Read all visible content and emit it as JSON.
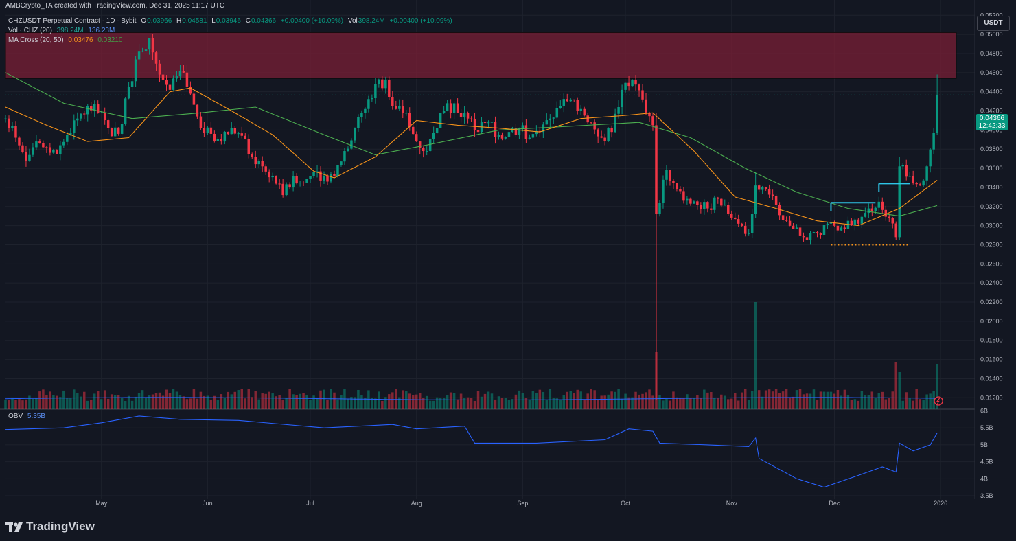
{
  "header": {
    "credit": "AMBCrypto_TA created with TradingView.com, Dec 31, 2025 11:17 UTC"
  },
  "legend": {
    "symbol": "CHZUSDT Perpetual Contract · 1D · Bybit",
    "open_label": "O",
    "open": "0.03966",
    "high_label": "H",
    "high": "0.04581",
    "low_label": "L",
    "low": "0.03946",
    "close_label": "C",
    "close": "0.04366",
    "change": "+0.00400 (+10.09%)",
    "vol_label": "Vol",
    "vol": "398.24M",
    "vol_change": "+0.00400 (+10.09%)",
    "volume_indicator": "Vol · CHZ (20)",
    "volume_value": "398.24M",
    "volume_ma": "136.23M",
    "ma_cross": "MA Cross (20, 50)",
    "ma20": "0.03476",
    "ma50": "0.03210",
    "obv_label": "OBV",
    "obv_value": "5.35B"
  },
  "toolbar": {
    "currency": "USDT",
    "last_price": "0.04366",
    "countdown": "12:42:33",
    "brand": "TradingView"
  },
  "colors": {
    "background": "#131722",
    "up": "#089981",
    "down": "#f23645",
    "ma20": "#f7931a",
    "ma50": "#4caf50",
    "obv": "#2962ff",
    "resistance_zone": "#7a1f35",
    "range_line": "#2ec4e6",
    "support_line": "#f7931a"
  },
  "chart_data": [
    {
      "type": "candlestick",
      "title": "",
      "price_axis_ticks": [
        "0.05200",
        "0.05000",
        "0.04800",
        "0.04600",
        "0.04400",
        "0.04200",
        "0.04000",
        "0.03800",
        "0.03600",
        "0.03400",
        "0.03200",
        "0.03000",
        "0.02800",
        "0.02600",
        "0.02400",
        "0.02200",
        "0.02000",
        "0.01800",
        "0.01600",
        "0.01400",
        "0.01200"
      ],
      "ylim": [
        0.0108,
        0.0536
      ],
      "time_axis_ticks": [
        "May",
        "Jun",
        "Jul",
        "Aug",
        "Sep",
        "Oct",
        "Nov",
        "Dec",
        "2026"
      ],
      "x_range": [
        "2025-04-03",
        "2026-01-11"
      ],
      "grid": true,
      "annotations": {
        "resistance_zone": [
          0.0454,
          0.0502
        ],
        "range_high_1": {
          "from": "2025-11-30",
          "to": "2025-12-13",
          "price": 0.0324
        },
        "range_high_2": {
          "from": "2025-12-14",
          "to": "2025-12-23",
          "price": 0.0344
        },
        "support_dotted": {
          "from": "2025-11-30",
          "to": "2025-12-23",
          "price": 0.028
        }
      },
      "close_series": [
        [
          "2025-04-03",
          0.0412
        ],
        [
          "2025-04-06",
          0.0392
        ],
        [
          "2025-04-09",
          0.0368
        ],
        [
          "2025-04-12",
          0.0388
        ],
        [
          "2025-04-15",
          0.0382
        ],
        [
          "2025-04-18",
          0.0375
        ],
        [
          "2025-04-21",
          0.0395
        ],
        [
          "2025-04-24",
          0.0412
        ],
        [
          "2025-04-27",
          0.0425
        ],
        [
          "2025-04-30",
          0.0418
        ],
        [
          "2025-05-03",
          0.0402
        ],
        [
          "2025-05-06",
          0.0396
        ],
        [
          "2025-05-09",
          0.0445
        ],
        [
          "2025-05-12",
          0.0482
        ],
        [
          "2025-05-15",
          0.0496
        ],
        [
          "2025-05-18",
          0.0458
        ],
        [
          "2025-05-21",
          0.0442
        ],
        [
          "2025-05-24",
          0.0462
        ],
        [
          "2025-05-27",
          0.0438
        ],
        [
          "2025-05-30",
          0.0402
        ],
        [
          "2025-06-02",
          0.0396
        ],
        [
          "2025-06-05",
          0.0388
        ],
        [
          "2025-06-08",
          0.0402
        ],
        [
          "2025-06-11",
          0.0394
        ],
        [
          "2025-06-14",
          0.0372
        ],
        [
          "2025-06-17",
          0.0362
        ],
        [
          "2025-06-20",
          0.0352
        ],
        [
          "2025-06-23",
          0.0332
        ],
        [
          "2025-06-26",
          0.0352
        ],
        [
          "2025-06-29",
          0.0345
        ],
        [
          "2025-07-02",
          0.0356
        ],
        [
          "2025-07-05",
          0.0352
        ],
        [
          "2025-07-08",
          0.0352
        ],
        [
          "2025-07-11",
          0.0378
        ],
        [
          "2025-07-14",
          0.0402
        ],
        [
          "2025-07-17",
          0.0422
        ],
        [
          "2025-07-20",
          0.0448
        ],
        [
          "2025-07-23",
          0.0452
        ],
        [
          "2025-07-26",
          0.0422
        ],
        [
          "2025-07-29",
          0.0418
        ],
        [
          "2025-08-01",
          0.0388
        ],
        [
          "2025-08-04",
          0.0378
        ],
        [
          "2025-08-07",
          0.0402
        ],
        [
          "2025-08-10",
          0.0428
        ],
        [
          "2025-08-13",
          0.0418
        ],
        [
          "2025-08-16",
          0.0412
        ],
        [
          "2025-08-19",
          0.0398
        ],
        [
          "2025-08-22",
          0.0408
        ],
        [
          "2025-08-25",
          0.0395
        ],
        [
          "2025-08-28",
          0.0398
        ],
        [
          "2025-08-31",
          0.0402
        ],
        [
          "2025-09-03",
          0.0392
        ],
        [
          "2025-09-06",
          0.0398
        ],
        [
          "2025-09-09",
          0.0412
        ],
        [
          "2025-09-12",
          0.0425
        ],
        [
          "2025-09-15",
          0.0432
        ],
        [
          "2025-09-18",
          0.0422
        ],
        [
          "2025-09-21",
          0.0408
        ],
        [
          "2025-09-24",
          0.0392
        ],
        [
          "2025-09-27",
          0.0398
        ],
        [
          "2025-09-30",
          0.0442
        ],
        [
          "2025-10-03",
          0.0452
        ],
        [
          "2025-10-06",
          0.0432
        ],
        [
          "2025-10-09",
          0.0405
        ],
        [
          "2025-10-10",
          0.0312
        ],
        [
          "2025-10-13",
          0.0358
        ],
        [
          "2025-10-16",
          0.0338
        ],
        [
          "2025-10-19",
          0.0328
        ],
        [
          "2025-10-22",
          0.0322
        ],
        [
          "2025-10-25",
          0.0318
        ],
        [
          "2025-10-28",
          0.0328
        ],
        [
          "2025-10-31",
          0.0312
        ],
        [
          "2025-11-03",
          0.0302
        ],
        [
          "2025-11-06",
          0.0292
        ],
        [
          "2025-11-08",
          0.0342
        ],
        [
          "2025-11-11",
          0.0338
        ],
        [
          "2025-11-14",
          0.0322
        ],
        [
          "2025-11-17",
          0.0305
        ],
        [
          "2025-11-20",
          0.0298
        ],
        [
          "2025-11-23",
          0.0285
        ],
        [
          "2025-11-26",
          0.0292
        ],
        [
          "2025-11-29",
          0.0302
        ],
        [
          "2025-12-02",
          0.0295
        ],
        [
          "2025-12-05",
          0.0305
        ],
        [
          "2025-12-08",
          0.0302
        ],
        [
          "2025-12-11",
          0.0318
        ],
        [
          "2025-12-14",
          0.0325
        ],
        [
          "2025-12-17",
          0.0308
        ],
        [
          "2025-12-19",
          0.0288
        ],
        [
          "2025-12-20",
          0.0362
        ],
        [
          "2025-12-23",
          0.0352
        ],
        [
          "2025-12-26",
          0.0342
        ],
        [
          "2025-12-28",
          0.0362
        ],
        [
          "2025-12-30",
          0.0397
        ],
        [
          "2025-12-31",
          0.04366
        ]
      ],
      "ma20_series": [
        [
          "2025-04-03",
          0.0424
        ],
        [
          "2025-04-15",
          0.0405
        ],
        [
          "2025-04-27",
          0.0388
        ],
        [
          "2025-05-09",
          0.0392
        ],
        [
          "2025-05-21",
          0.044
        ],
        [
          "2025-05-27",
          0.0444
        ],
        [
          "2025-06-08",
          0.042
        ],
        [
          "2025-06-20",
          0.0395
        ],
        [
          "2025-07-02",
          0.0357
        ],
        [
          "2025-07-08",
          0.035
        ],
        [
          "2025-07-20",
          0.0372
        ],
        [
          "2025-08-01",
          0.041
        ],
        [
          "2025-08-13",
          0.0405
        ],
        [
          "2025-08-25",
          0.0402
        ],
        [
          "2025-09-06",
          0.0398
        ],
        [
          "2025-09-18",
          0.0412
        ],
        [
          "2025-09-30",
          0.0415
        ],
        [
          "2025-10-09",
          0.0418
        ],
        [
          "2025-10-21",
          0.0378
        ],
        [
          "2025-11-02",
          0.033
        ],
        [
          "2025-11-14",
          0.0318
        ],
        [
          "2025-11-26",
          0.0305
        ],
        [
          "2025-12-08",
          0.03
        ],
        [
          "2025-12-20",
          0.0318
        ],
        [
          "2025-12-31",
          0.03476
        ]
      ],
      "ma50_series": [
        [
          "2025-04-03",
          0.046
        ],
        [
          "2025-04-20",
          0.0428
        ],
        [
          "2025-05-10",
          0.0412
        ],
        [
          "2025-05-30",
          0.0418
        ],
        [
          "2025-06-15",
          0.0424
        ],
        [
          "2025-07-05",
          0.0395
        ],
        [
          "2025-07-20",
          0.0374
        ],
        [
          "2025-08-05",
          0.0385
        ],
        [
          "2025-08-25",
          0.04
        ],
        [
          "2025-09-15",
          0.0404
        ],
        [
          "2025-10-05",
          0.0408
        ],
        [
          "2025-10-20",
          0.0392
        ],
        [
          "2025-11-05",
          0.036
        ],
        [
          "2025-11-20",
          0.0335
        ],
        [
          "2025-12-05",
          0.0318
        ],
        [
          "2025-12-20",
          0.031
        ],
        [
          "2025-12-31",
          0.0321
        ]
      ],
      "volume_spikes": [
        [
          "2025-10-10",
          0.28
        ],
        [
          "2025-11-08",
          0.52
        ],
        [
          "2025-12-19",
          0.23
        ],
        [
          "2025-12-20",
          0.18
        ],
        [
          "2025-12-31",
          0.22
        ]
      ]
    },
    {
      "type": "line",
      "title": "OBV",
      "axis_ticks": [
        "6B",
        "5.5B",
        "5B",
        "4.5B",
        "4B",
        "3.5B"
      ],
      "ylim": [
        3.4,
        6.05
      ],
      "series": [
        {
          "name": "OBV",
          "points": [
            [
              "2025-04-03",
              5.45
            ],
            [
              "2025-04-20",
              5.5
            ],
            [
              "2025-05-01",
              5.65
            ],
            [
              "2025-05-12",
              5.85
            ],
            [
              "2025-05-24",
              5.75
            ],
            [
              "2025-06-10",
              5.72
            ],
            [
              "2025-07-05",
              5.5
            ],
            [
              "2025-07-25",
              5.6
            ],
            [
              "2025-08-01",
              5.47
            ],
            [
              "2025-08-15",
              5.55
            ],
            [
              "2025-08-18",
              5.05
            ],
            [
              "2025-09-05",
              5.05
            ],
            [
              "2025-09-25",
              5.15
            ],
            [
              "2025-10-02",
              5.47
            ],
            [
              "2025-10-09",
              5.4
            ],
            [
              "2025-10-11",
              5.05
            ],
            [
              "2025-10-25",
              5.0
            ],
            [
              "2025-11-06",
              4.95
            ],
            [
              "2025-11-08",
              5.2
            ],
            [
              "2025-11-09",
              4.6
            ],
            [
              "2025-11-20",
              4.0
            ],
            [
              "2025-11-28",
              3.75
            ],
            [
              "2025-12-08",
              4.1
            ],
            [
              "2025-12-15",
              4.35
            ],
            [
              "2025-12-19",
              4.2
            ],
            [
              "2025-12-20",
              5.05
            ],
            [
              "2025-12-24",
              4.82
            ],
            [
              "2025-12-29",
              5.0
            ],
            [
              "2025-12-31",
              5.35
            ]
          ]
        }
      ]
    }
  ]
}
